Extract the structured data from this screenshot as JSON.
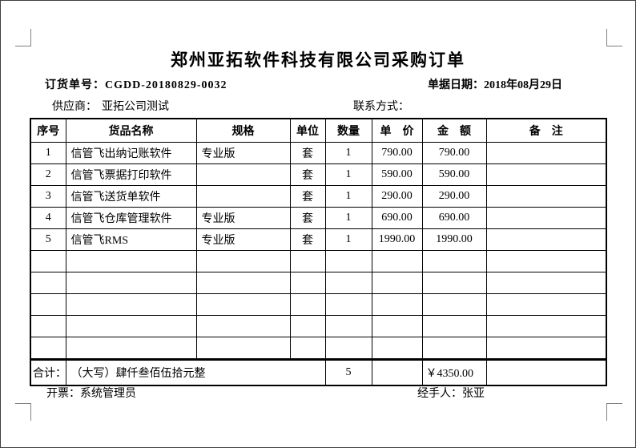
{
  "page": {
    "title": "郑州亚拓软件科技有限公司采购订单",
    "order_no_label": "订货单号：",
    "order_no": "CGDD-20180829-0032",
    "date_label": "单据日期：",
    "date": "2018年08月29日",
    "supplier_label": "供应商：",
    "supplier": "亚拓公司测试",
    "contact_label": "联系方式：",
    "contact": ""
  },
  "table": {
    "headers": [
      "序号",
      "货品名称",
      "规格",
      "单位",
      "数量",
      "单　价",
      "金　额",
      "备　注"
    ],
    "rows": [
      {
        "no": "1",
        "name": "信管飞出纳记账软件",
        "spec": "专业版",
        "unit": "套",
        "qty": "1",
        "price": "790.00",
        "amount": "790.00",
        "note": ""
      },
      {
        "no": "2",
        "name": "信管飞票据打印软件",
        "spec": "",
        "unit": "套",
        "qty": "1",
        "price": "590.00",
        "amount": "590.00",
        "note": ""
      },
      {
        "no": "3",
        "name": "信管飞送货单软件",
        "spec": "",
        "unit": "套",
        "qty": "1",
        "price": "290.00",
        "amount": "290.00",
        "note": ""
      },
      {
        "no": "4",
        "name": "信管飞仓库管理软件",
        "spec": "专业版",
        "unit": "套",
        "qty": "1",
        "price": "690.00",
        "amount": "690.00",
        "note": ""
      },
      {
        "no": "5",
        "name": "信管飞RMS",
        "spec": "专业版",
        "unit": "套",
        "qty": "1",
        "price": "1990.00",
        "amount": "1990.00",
        "note": ""
      }
    ],
    "empty_row_count": 5,
    "total": {
      "label": "合计：",
      "amount_in_words": "（大写）肆仟叁佰伍拾元整",
      "total_qty": "5",
      "total_price_blank": "",
      "total_amount": "￥4350.00",
      "note_blank": ""
    }
  },
  "footer": {
    "issuer_label": "开票：",
    "issuer": "系统管理员",
    "handler_label": "经手人：",
    "handler": "张亚"
  }
}
